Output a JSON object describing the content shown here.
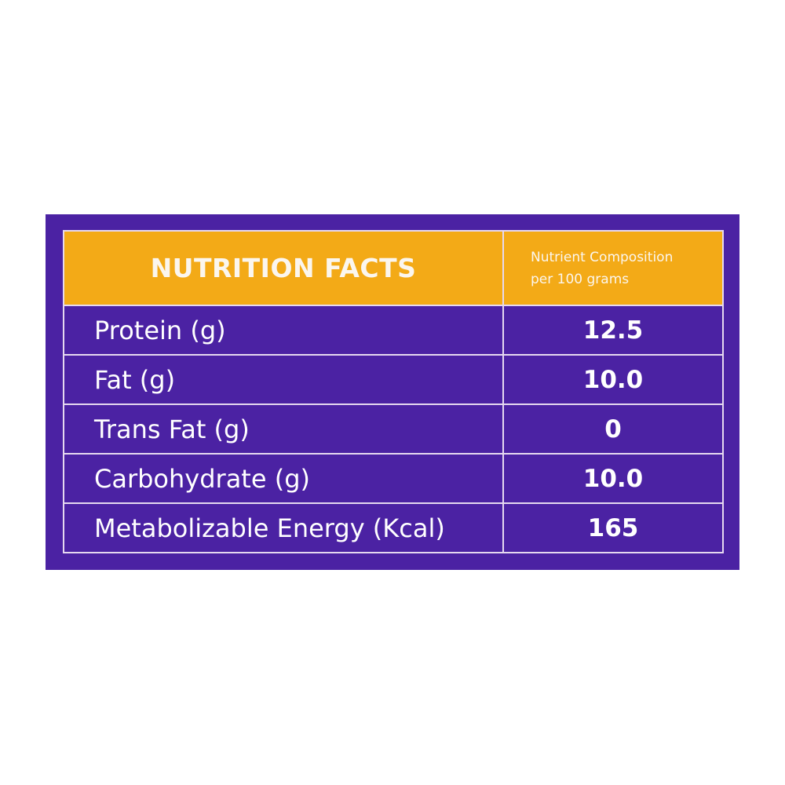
{
  "header": {
    "title": "NUTRITION FACTS",
    "column_heading_line1": "Nutrient Composition",
    "column_heading_line2": "per 100 grams"
  },
  "rows": [
    {
      "label": "Protein (g)",
      "value": "12.5"
    },
    {
      "label": "Fat (g)",
      "value": "10.0"
    },
    {
      "label": "Trans Fat (g)",
      "value": "0"
    },
    {
      "label": "Carbohydrate (g)",
      "value": "10.0"
    },
    {
      "label": "Metabolizable Energy (Kcal)",
      "value": "165"
    }
  ],
  "colors": {
    "panel": "#4b22a3",
    "header": "#f3aa17",
    "text": "#ffffff"
  }
}
